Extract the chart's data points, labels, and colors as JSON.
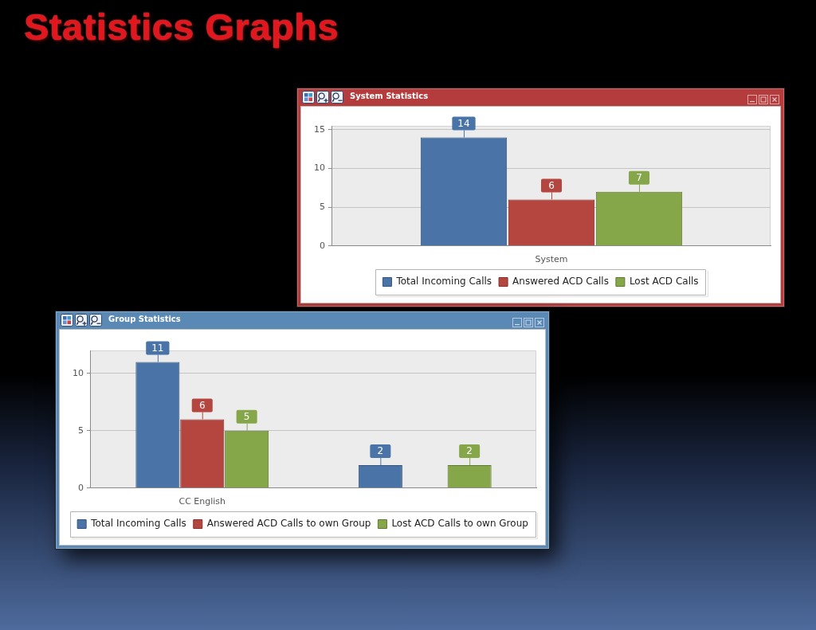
{
  "chart_data": [
    {
      "type": "other",
      "title": "Statistics Graphs"
    },
    {
      "type": "bar",
      "title": "System Statistics",
      "categories": [
        "System"
      ],
      "series": [
        {
          "name": "Total Incoming Calls",
          "color": "#4a74a8",
          "values": [
            14
          ]
        },
        {
          "name": "Answered ACD Calls",
          "color": "#b4453f",
          "values": [
            6
          ]
        },
        {
          "name": "Lost ACD Calls",
          "color": "#86a64a",
          "values": [
            7
          ]
        }
      ],
      "ylim": [
        0,
        15.5
      ],
      "yticks": [
        0,
        5,
        10,
        15
      ],
      "grid": "y",
      "legend": "bottom",
      "data_labels": true
    },
    {
      "type": "bar",
      "title": "Group Statistics",
      "categories": [
        "CC English",
        null
      ],
      "series": [
        {
          "name": "Total Incoming Calls",
          "color": "#4a74a8",
          "values": [
            11,
            2
          ]
        },
        {
          "name": "Answered ACD Calls to own Group",
          "color": "#b4453f",
          "values": [
            6,
            null
          ]
        },
        {
          "name": "Lost ACD Calls to own Group",
          "color": "#86a64a",
          "values": [
            5,
            2
          ]
        }
      ],
      "ylim": [
        0,
        12
      ],
      "yticks": [
        0,
        5,
        10
      ],
      "grid": "y",
      "legend": "bottom",
      "data_labels": true
    }
  ]
}
